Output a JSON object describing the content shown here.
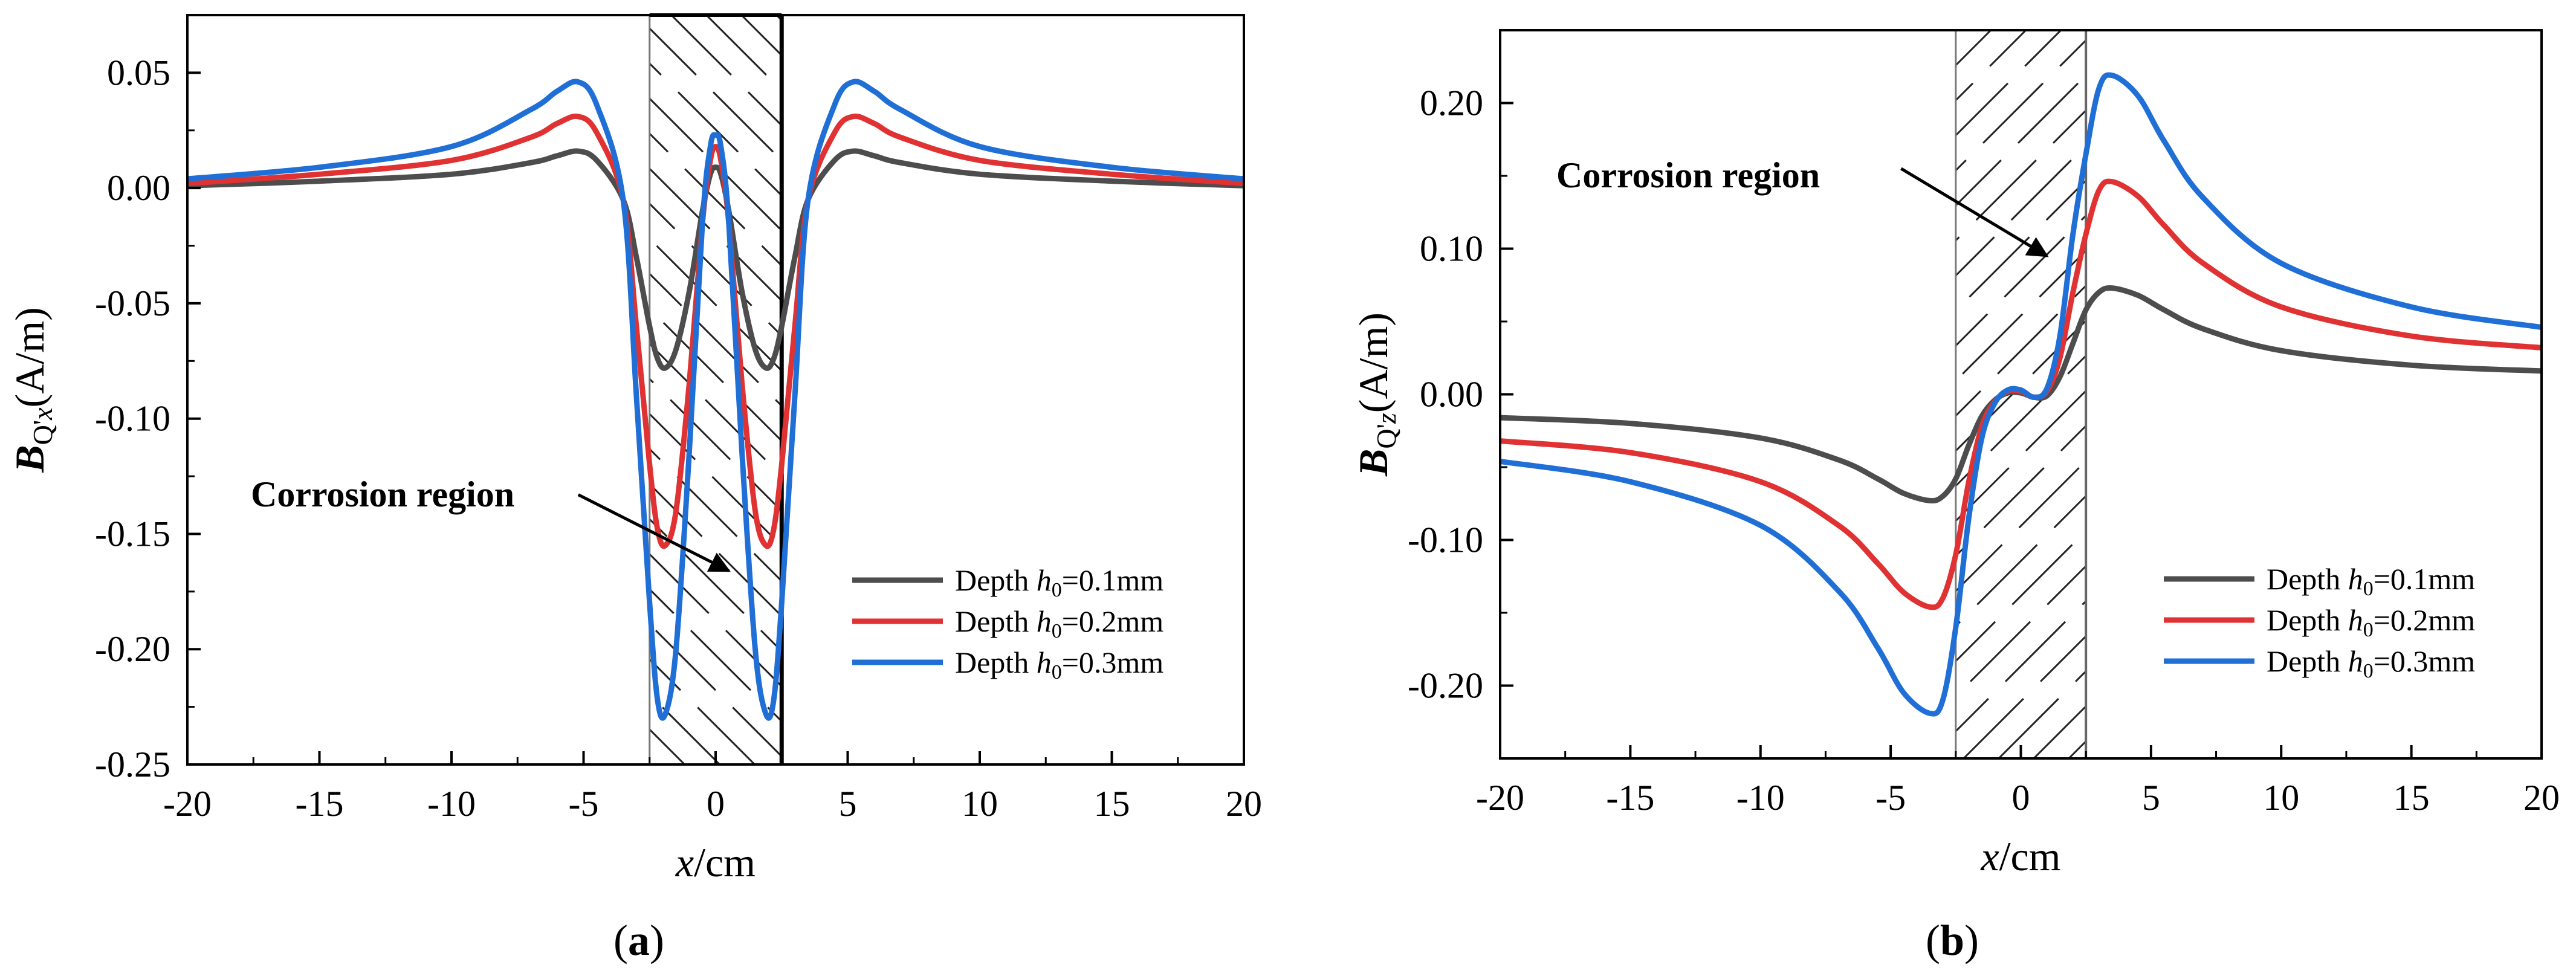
{
  "chart_data": [
    {
      "type": "line",
      "panel_label": "a",
      "ylabel_symbol": "B",
      "ylabel_sub": "Q'x",
      "ylabel_unit": "(A/m)",
      "xlabel_var": "x",
      "xlabel_unit": "/cm",
      "xlim": [
        -20,
        20
      ],
      "ylim": [
        -0.25,
        0.075
      ],
      "xticks": [
        -20,
        -15,
        -10,
        -5,
        0,
        5,
        10,
        15,
        20
      ],
      "xtick_labels": [
        "-20",
        "-15",
        "-10",
        "-5",
        "0",
        "5",
        "10",
        "15",
        "20"
      ],
      "yticks": [
        -0.25,
        -0.2,
        -0.15,
        -0.1,
        -0.05,
        0.0,
        0.05
      ],
      "ytick_labels": [
        "-0.25",
        "-0.20",
        "-0.15",
        "-0.10",
        "-0.05",
        "0.00",
        "0.05"
      ],
      "corrosion_region_x": [
        -2.5,
        2.5
      ],
      "annotation": {
        "text": "Corrosion region",
        "arrow_from": [
          -5.2,
          -0.133
        ],
        "arrow_to": [
          0.5,
          -0.166
        ]
      },
      "legend_placement": "bottom-right",
      "series": [
        {
          "name_prefix": "Depth ",
          "name_var": "h",
          "name_sub": "0",
          "name_suffix": "=0.1mm",
          "color": "#4d4d4d",
          "x": [
            -20,
            -15,
            -10,
            -7,
            -6,
            -5.2,
            -4.5,
            -3.5,
            -3,
            -2.5,
            -2.2,
            -1.9,
            -1.5,
            -1,
            -0.5,
            -0.2,
            0,
            0.2,
            0.5,
            1,
            1.5,
            1.9,
            2.2,
            2.5,
            3,
            3.5,
            4.5,
            5.2,
            6,
            7,
            10,
            15,
            20
          ],
          "y": [
            0.001,
            0.003,
            0.006,
            0.011,
            0.014,
            0.016,
            0.012,
            -0.005,
            -0.03,
            -0.06,
            -0.074,
            -0.078,
            -0.07,
            -0.045,
            -0.01,
            0.006,
            0.009,
            0.006,
            -0.01,
            -0.045,
            -0.07,
            -0.078,
            -0.074,
            -0.06,
            -0.03,
            -0.005,
            0.012,
            0.016,
            0.014,
            0.011,
            0.006,
            0.003,
            0.001
          ]
        },
        {
          "name_prefix": "Depth ",
          "name_var": "h",
          "name_sub": "0",
          "name_suffix": "=0.2mm",
          "color": "#e03232",
          "x": [
            -20,
            -15,
            -10,
            -7,
            -6,
            -5.2,
            -4.5,
            -3.5,
            -3,
            -2.5,
            -2.2,
            -1.9,
            -1.5,
            -1,
            -0.5,
            -0.2,
            0,
            0.2,
            0.5,
            1,
            1.5,
            1.9,
            2.2,
            2.5,
            3,
            3.5,
            4.5,
            5.2,
            6,
            7,
            10,
            15,
            20
          ],
          "y": [
            0.002,
            0.006,
            0.012,
            0.022,
            0.028,
            0.031,
            0.024,
            -0.005,
            -0.06,
            -0.12,
            -0.148,
            -0.155,
            -0.14,
            -0.085,
            -0.015,
            0.012,
            0.018,
            0.012,
            -0.015,
            -0.085,
            -0.14,
            -0.155,
            -0.148,
            -0.12,
            -0.06,
            -0.005,
            0.024,
            0.031,
            0.028,
            0.022,
            0.012,
            0.006,
            0.002
          ]
        },
        {
          "name_prefix": "Depth ",
          "name_var": "h",
          "name_sub": "0",
          "name_suffix": "=0.3mm",
          "color": "#1f6fd6",
          "x": [
            -20,
            -15,
            -10,
            -7,
            -6,
            -5.2,
            -4.5,
            -3.5,
            -3,
            -2.5,
            -2.2,
            -1.9,
            -1.5,
            -1,
            -0.5,
            -0.2,
            0,
            0.2,
            0.5,
            1,
            1.5,
            1.9,
            2.2,
            2.5,
            3,
            3.5,
            4.5,
            5.2,
            6,
            7,
            10,
            15,
            20
          ],
          "y": [
            0.004,
            0.009,
            0.018,
            0.034,
            0.042,
            0.046,
            0.036,
            -0.005,
            -0.09,
            -0.18,
            -0.222,
            -0.228,
            -0.2,
            -0.115,
            -0.015,
            0.018,
            0.023,
            0.018,
            -0.015,
            -0.115,
            -0.2,
            -0.228,
            -0.222,
            -0.18,
            -0.09,
            -0.005,
            0.036,
            0.046,
            0.042,
            0.034,
            0.018,
            0.009,
            0.004
          ]
        }
      ]
    },
    {
      "type": "line",
      "panel_label": "b",
      "ylabel_symbol": "B",
      "ylabel_sub": "Q'z",
      "ylabel_unit": "(A/m)",
      "xlabel_var": "x",
      "xlabel_unit": "/cm",
      "xlim": [
        -20,
        20
      ],
      "ylim": [
        -0.25,
        0.25
      ],
      "xticks": [
        -20,
        -15,
        -10,
        -5,
        0,
        5,
        10,
        15,
        20
      ],
      "xtick_labels": [
        "-20",
        "-15",
        "-10",
        "-5",
        "0",
        "5",
        "10",
        "15",
        "20"
      ],
      "yticks": [
        -0.2,
        -0.1,
        0.0,
        0.1,
        0.2
      ],
      "ytick_labels": [
        "-0.20",
        "-0.10",
        "0.00",
        "0.10",
        "0.20"
      ],
      "corrosion_region_x": [
        -2.5,
        2.5
      ],
      "annotation": {
        "text": "Corrosion region",
        "arrow_from": [
          -4.6,
          0.155
        ],
        "arrow_to": [
          1.0,
          0.095
        ]
      },
      "legend_placement": "bottom-right",
      "series": [
        {
          "name_prefix": "Depth ",
          "name_var": "h",
          "name_sub": "0",
          "name_suffix": "=0.1mm",
          "color": "#4d4d4d",
          "x": [
            -20,
            -15,
            -10,
            -7,
            -5.5,
            -4.5,
            -3.5,
            -3,
            -2.5,
            -2,
            -1.5,
            -1,
            -0.5,
            0,
            0.5,
            1,
            1.5,
            2,
            2.5,
            3,
            3.5,
            4.5,
            5.5,
            7,
            10,
            15,
            20
          ],
          "y": [
            -0.016,
            -0.02,
            -0.03,
            -0.045,
            -0.058,
            -0.068,
            -0.073,
            -0.07,
            -0.058,
            -0.035,
            -0.015,
            -0.004,
            0.001,
            0.001,
            -0.002,
            -0.001,
            0.012,
            0.035,
            0.058,
            0.07,
            0.073,
            0.068,
            0.058,
            0.045,
            0.03,
            0.02,
            0.016
          ]
        },
        {
          "name_prefix": "Depth ",
          "name_var": "h",
          "name_sub": "0",
          "name_suffix": "=0.2mm",
          "color": "#e03232",
          "x": [
            -20,
            -15,
            -10,
            -7,
            -5.5,
            -4.5,
            -3.5,
            -3,
            -2.5,
            -2,
            -1.5,
            -1,
            -0.5,
            0,
            0.5,
            1,
            1.5,
            2,
            2.5,
            3,
            3.5,
            4.5,
            5.5,
            7,
            10,
            15,
            20
          ],
          "y": [
            -0.032,
            -0.04,
            -0.06,
            -0.09,
            -0.116,
            -0.136,
            -0.146,
            -0.14,
            -0.11,
            -0.06,
            -0.022,
            -0.005,
            0.002,
            0.002,
            -0.002,
            0.002,
            0.025,
            0.07,
            0.11,
            0.14,
            0.146,
            0.136,
            0.116,
            0.09,
            0.06,
            0.04,
            0.032
          ]
        },
        {
          "name_prefix": "Depth ",
          "name_var": "h",
          "name_sub": "0",
          "name_suffix": "=0.3mm",
          "color": "#1f6fd6",
          "x": [
            -20,
            -15,
            -10,
            -7,
            -5.5,
            -4.5,
            -3.5,
            -3,
            -2.5,
            -2,
            -1.5,
            -1,
            -0.5,
            0,
            0.5,
            1,
            1.5,
            2,
            2.5,
            3,
            3.5,
            4.5,
            5.5,
            7,
            10,
            15,
            20
          ],
          "y": [
            -0.046,
            -0.06,
            -0.09,
            -0.135,
            -0.174,
            -0.205,
            -0.219,
            -0.21,
            -0.16,
            -0.085,
            -0.03,
            -0.006,
            0.003,
            0.003,
            -0.002,
            0.004,
            0.04,
            0.11,
            0.165,
            0.21,
            0.219,
            0.205,
            0.174,
            0.135,
            0.09,
            0.06,
            0.046
          ]
        }
      ]
    }
  ]
}
